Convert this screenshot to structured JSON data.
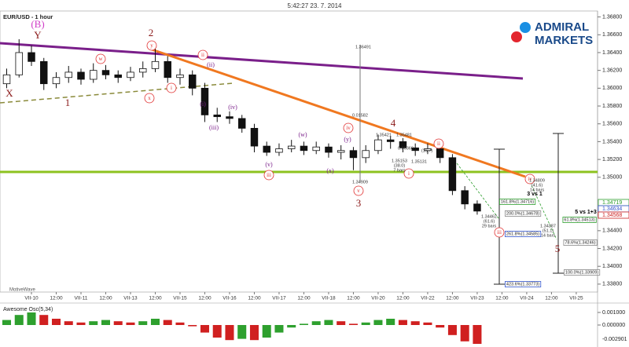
{
  "chart_data": {
    "type": "candlestick",
    "timestamp": "5:42:27 23. 7. 2014",
    "title": "EUR/USD - 1 hour",
    "brand": [
      "ADMIRAL",
      "MARKETS"
    ],
    "footer": "MotiveWave",
    "categories": [
      "VII-10",
      "12:00",
      "VII-11",
      "12:00",
      "VII-13",
      "12:00",
      "VII-15",
      "12:00",
      "VII-16",
      "12:00",
      "VII-17",
      "12:00",
      "VII-18",
      "12:00",
      "VII-20",
      "12:00",
      "VII-22",
      "12:00",
      "VII-23",
      "12:00",
      "VII-24",
      "12:00",
      "VII-25"
    ],
    "xlim": [
      -1.27,
      22.86
    ],
    "ylim": [
      1.33711,
      1.36867
    ],
    "yticks": [
      {
        "value": 1.368,
        "label": "1.36800"
      },
      {
        "value": 1.366,
        "label": "1.36600"
      },
      {
        "value": 1.364,
        "label": "1.36400"
      },
      {
        "value": 1.362,
        "label": "1.36200"
      },
      {
        "value": 1.36,
        "label": "1.36000"
      },
      {
        "value": 1.358,
        "label": "1.35800"
      },
      {
        "value": 1.356,
        "label": "1.35600"
      },
      {
        "value": 1.354,
        "label": "1.35400"
      },
      {
        "value": 1.352,
        "label": "1.35200"
      },
      {
        "value": 1.35,
        "label": "1.35000"
      },
      {
        "value": 1.344,
        "label": "1.34400"
      },
      {
        "value": 1.342,
        "label": "1.34200"
      },
      {
        "value": 1.34,
        "label": "1.34000"
      },
      {
        "value": 1.338,
        "label": "1.33800"
      }
    ],
    "price_tags": [
      {
        "label": "1.34719",
        "color": "#2e9e2e"
      },
      {
        "label": "1.34634",
        "color": "#3355cc"
      },
      {
        "label": "1.34568",
        "color": "#cc2222"
      }
    ],
    "x": [
      -1,
      -0.5,
      0,
      0.5,
      1,
      1.5,
      2,
      2.5,
      3,
      3.5,
      4,
      4.5,
      5,
      5.5,
      6,
      6.5,
      7,
      7.5,
      8,
      8.5,
      9,
      9.5,
      10,
      10.5,
      11,
      11.5,
      12,
      12.5,
      13,
      13.5,
      14,
      14.5,
      15,
      15.5,
      16,
      16.5,
      17,
      17.5,
      18
    ],
    "open": [
      1.3605,
      1.3615,
      1.364,
      1.363,
      1.3605,
      1.3612,
      1.3618,
      1.361,
      1.362,
      1.3615,
      1.3612,
      1.3618,
      1.3622,
      1.363,
      1.3612,
      1.3615,
      1.36,
      1.357,
      1.3568,
      1.3566,
      1.3555,
      1.3535,
      1.3528,
      1.3532,
      1.3535,
      1.353,
      1.3534,
      1.3528,
      1.353,
      1.3522,
      1.353,
      1.3542,
      1.354,
      1.3533,
      1.353,
      1.3532,
      1.3522,
      1.3485,
      1.347
    ],
    "high": [
      1.3622,
      1.3655,
      1.3648,
      1.3634,
      1.3618,
      1.3625,
      1.3622,
      1.3628,
      1.3626,
      1.362,
      1.3624,
      1.363,
      1.3645,
      1.3636,
      1.3622,
      1.362,
      1.3606,
      1.3578,
      1.3574,
      1.357,
      1.356,
      1.354,
      1.3538,
      1.3542,
      1.354,
      1.354,
      1.3538,
      1.3536,
      1.3534,
      1.3536,
      1.3548,
      1.3546,
      1.3544,
      1.3538,
      1.3538,
      1.3536,
      1.3526,
      1.349,
      1.3474
    ],
    "low": [
      1.36,
      1.3612,
      1.3625,
      1.3598,
      1.36,
      1.3606,
      1.3604,
      1.3606,
      1.361,
      1.3606,
      1.3608,
      1.3612,
      1.3618,
      1.3606,
      1.3604,
      1.3592,
      1.3562,
      1.3562,
      1.356,
      1.355,
      1.3528,
      1.3524,
      1.3524,
      1.3528,
      1.3525,
      1.3526,
      1.3522,
      1.352,
      1.3508,
      1.3516,
      1.3526,
      1.3532,
      1.3528,
      1.3524,
      1.3526,
      1.3516,
      1.348,
      1.3464,
      1.3458
    ],
    "close": [
      1.3615,
      1.364,
      1.363,
      1.3605,
      1.3612,
      1.3618,
      1.361,
      1.362,
      1.3615,
      1.3612,
      1.3618,
      1.3622,
      1.363,
      1.3612,
      1.3615,
      1.36,
      1.357,
      1.3568,
      1.3566,
      1.3555,
      1.3535,
      1.3528,
      1.3532,
      1.3535,
      1.353,
      1.3534,
      1.3528,
      1.353,
      1.3522,
      1.353,
      1.3542,
      1.354,
      1.3533,
      1.353,
      1.3532,
      1.3522,
      1.3485,
      1.347,
      1.3462
    ],
    "oscillator": {
      "title": "Awesome Osc(5,34)",
      "ylim": [
        -0.001625,
        0.001625
      ],
      "yticks": [
        {
          "value": 0.001,
          "label": "0.001000"
        },
        {
          "value": 0,
          "label": "0.000000"
        }
      ],
      "min_label": "-0.002901",
      "values": [
        0.0004,
        0.0008,
        0.001,
        0.0008,
        0.0005,
        0.0003,
        0.0002,
        0.0003,
        0.0004,
        0.0003,
        0.0002,
        0.0003,
        0.0005,
        0.0004,
        0.0002,
        -0.0001,
        -0.0006,
        -0.001,
        -0.0012,
        -0.0011,
        -0.0012,
        -0.001,
        -0.0006,
        -0.0002,
        0.0001,
        0.0003,
        0.0004,
        0.0003,
        0.0001,
        0.0002,
        0.0004,
        0.0005,
        0.0004,
        0.0003,
        0.0002,
        -0.0002,
        -0.0008,
        -0.0013,
        -0.0015
      ]
    },
    "annotations": [
      {
        "text": "(B)",
        "color": "#d03cc8",
        "kind": "big"
      },
      {
        "text": "Y",
        "color": "#8b1a1a",
        "kind": "big"
      },
      {
        "text": "X",
        "color": "#8b1a1a",
        "kind": "big"
      },
      {
        "text": "1",
        "color": "#8b1a1a",
        "kind": "big"
      },
      {
        "text": "2",
        "color": "#8b1a1a",
        "kind": "big"
      },
      {
        "text": "w",
        "color": "#e03030",
        "kind": "circle"
      },
      {
        "text": "x",
        "color": "#e03030",
        "kind": "circle"
      },
      {
        "text": "y",
        "color": "#e03030",
        "kind": "circle"
      },
      {
        "text": "i",
        "color": "#e03030",
        "kind": "circle"
      },
      {
        "text": "ii",
        "color": "#e03030",
        "kind": "circle"
      },
      {
        "text": "(ii)",
        "color": "#7a1f8a",
        "kind": "plain"
      },
      {
        "text": "(i)",
        "color": "#7a1f8a",
        "kind": "plain"
      },
      {
        "text": "(iii)",
        "color": "#7a1f8a",
        "kind": "plain"
      },
      {
        "text": "(iv)",
        "color": "#7a1f8a",
        "kind": "plain"
      },
      {
        "text": "(v)",
        "color": "#7a1f8a",
        "kind": "plain"
      },
      {
        "text": "iii",
        "color": "#e03030",
        "kind": "circle"
      },
      {
        "text": "(w)",
        "color": "#7a1f8a",
        "kind": "plain"
      },
      {
        "text": "(x)",
        "color": "#7a1f8a",
        "kind": "plain"
      },
      {
        "text": "(y)",
        "color": "#7a1f8a",
        "kind": "plain"
      },
      {
        "text": "iv",
        "color": "#e03030",
        "kind": "circle"
      },
      {
        "text": "v",
        "color": "#e03030",
        "kind": "circle"
      },
      {
        "text": "3",
        "color": "#8b1a1a",
        "kind": "big"
      },
      {
        "text": "4",
        "color": "#8b1a1a",
        "kind": "big"
      },
      {
        "text": "ii",
        "color": "#e03030",
        "kind": "circle"
      },
      {
        "text": "i",
        "color": "#e03030",
        "kind": "circle"
      },
      {
        "text": "iv",
        "color": "#e03030",
        "kind": "circle"
      },
      {
        "text": "iii",
        "color": "#e03030",
        "kind": "circle"
      },
      {
        "text": "5",
        "color": "#8b1a1a",
        "kind": "big"
      },
      {
        "text": "3 vs 1",
        "color": "#000000",
        "kind": "bold"
      },
      {
        "text": "5 vs 1+3",
        "color": "#000000",
        "kind": "bold"
      },
      {
        "text": "1.36491",
        "color": "#333333",
        "kind": "small"
      },
      {
        "text": "0.01582",
        "color": "#333333",
        "kind": "small"
      },
      {
        "text": "1.34909",
        "color": "#333333",
        "kind": "small"
      },
      {
        "text": "1.35421",
        "color": "#333333",
        "kind": "small"
      },
      {
        "text": "1.35481",
        "color": "#333333",
        "kind": "small"
      },
      {
        "text": "(16.7)",
        "color": "#333333",
        "kind": "small"
      },
      {
        "text": "0.00360",
        "color": "#333333",
        "kind": "small"
      },
      {
        "text": "1.35153",
        "color": "#333333",
        "kind": "small"
      },
      {
        "text": "(38.0)",
        "color": "#333333",
        "kind": "small"
      },
      {
        "text": "7 bars",
        "color": "#333333",
        "kind": "small"
      },
      {
        "text": "1.35131",
        "color": "#333333",
        "kind": "small"
      },
      {
        "text": "1.34809",
        "color": "#333333",
        "kind": "small"
      },
      {
        "text": "(41.6)",
        "color": "#333333",
        "kind": "small"
      },
      {
        "text": "14 bars",
        "color": "#333333",
        "kind": "small"
      },
      {
        "text": "1.34462",
        "color": "#333333",
        "kind": "small"
      },
      {
        "text": "(61.6)",
        "color": "#333333",
        "kind": "small"
      },
      {
        "text": "29 bars",
        "color": "#333333",
        "kind": "small"
      },
      {
        "text": "1.34387",
        "color": "#333333",
        "kind": "small"
      },
      {
        "text": "(51.1)",
        "color": "#333333",
        "kind": "small"
      },
      {
        "text": "14 bars",
        "color": "#333333",
        "kind": "small"
      },
      {
        "text": "161.8%(1.34716)",
        "color": "#2e9e2e",
        "kind": "box"
      },
      {
        "text": "200.0%(1.34678)",
        "color": "#888888",
        "kind": "box"
      },
      {
        "text": "261.8%(1.34585)",
        "color": "#3355cc",
        "kind": "box"
      },
      {
        "text": "423.6%(1.33773)",
        "color": "#3355cc",
        "kind": "box"
      },
      {
        "text": "61.8%(1.34513)",
        "color": "#2e9e2e",
        "kind": "box"
      },
      {
        "text": "78.6%(1.34246)",
        "color": "#888888",
        "kind": "box"
      },
      {
        "text": "100.0%(1.33909)",
        "color": "#888888",
        "kind": "box"
      }
    ]
  }
}
